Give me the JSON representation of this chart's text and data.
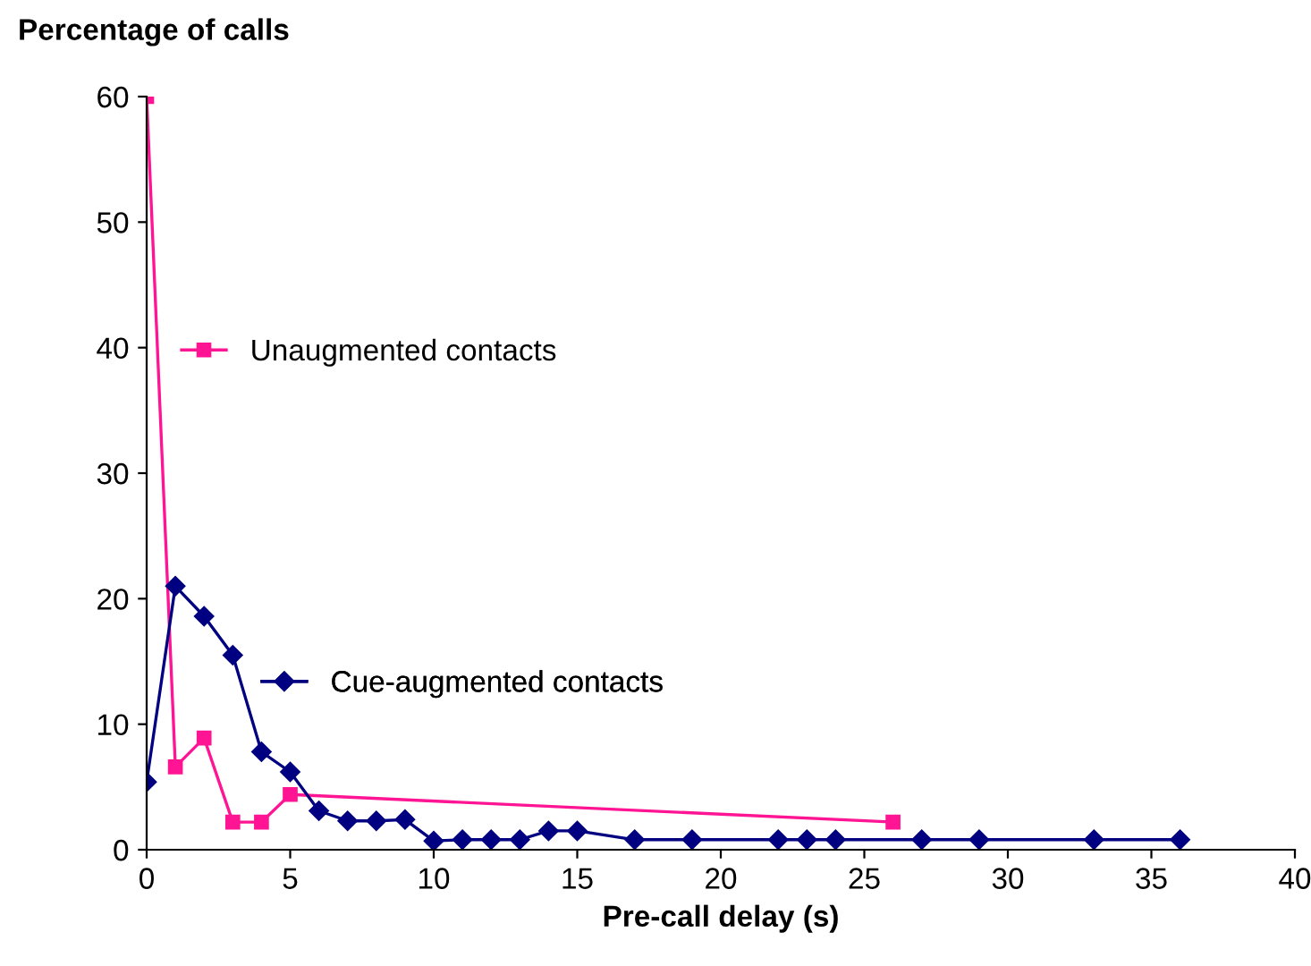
{
  "chart_data": {
    "type": "line",
    "ylabel": "Percentage of calls",
    "xlabel": "Pre-call delay (s)",
    "xlim": [
      0,
      40
    ],
    "xticks": [
      0,
      5,
      10,
      15,
      20,
      25,
      30,
      35,
      40
    ],
    "ylim": [
      0,
      60
    ],
    "yticks": [
      0,
      10,
      20,
      30,
      40,
      50,
      60
    ],
    "grid": false,
    "legend": "left",
    "line_style": "solid",
    "series": [
      {
        "name": "Unaugmented contacts",
        "color": "#ff1493",
        "marker": "square",
        "x": [
          0,
          1,
          2,
          3,
          4,
          5,
          26
        ],
        "values": [
          60,
          6.6,
          8.9,
          2.2,
          2.2,
          4.4,
          2.2
        ]
      },
      {
        "name": "Cue-augmented contacts",
        "color": "#000080",
        "marker": "diamond",
        "x": [
          0,
          1,
          2,
          3,
          4,
          5,
          6,
          7,
          8,
          9,
          10,
          11,
          12,
          13,
          14,
          15,
          17,
          19,
          22,
          23,
          24,
          27,
          29,
          33,
          36
        ],
        "values": [
          5.4,
          21,
          18.6,
          15.5,
          7.8,
          6.2,
          3.1,
          2.3,
          2.3,
          2.4,
          0.7,
          0.8,
          0.8,
          0.8,
          1.5,
          1.5,
          0.8,
          0.8,
          0.8,
          0.8,
          0.8,
          0.8,
          0.8,
          0.8,
          0.8
        ]
      }
    ]
  }
}
